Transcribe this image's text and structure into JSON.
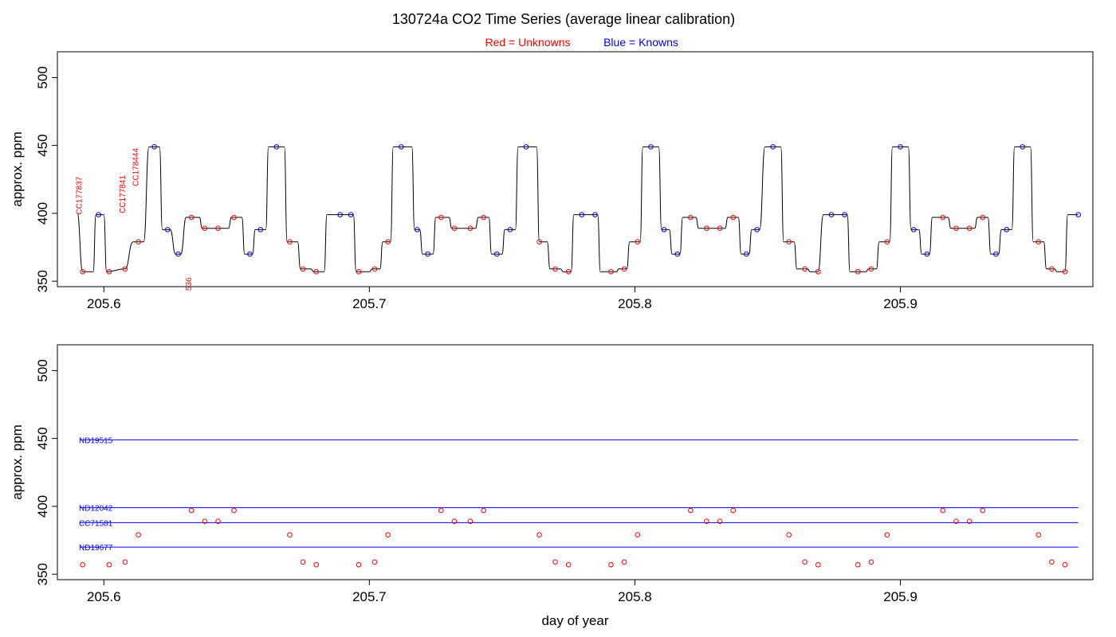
{
  "title": "130724a   CO2 Time Series (average linear calibration)",
  "legend": {
    "unknowns_word": "Red",
    "unknowns_rest": " = Unknowns",
    "knowns_word": "Blue",
    "knowns_rest": " = Knowns"
  },
  "colors": {
    "unknown": "#ff0000",
    "known": "#0000ff",
    "trace": "#000000"
  },
  "chart_data": [
    {
      "type": "line",
      "panel": "top",
      "xlabel": "",
      "ylabel": "approx. ppm",
      "xlim": [
        205.5825,
        205.9725
      ],
      "ylim": [
        346,
        519
      ],
      "xticks": [
        205.6,
        205.7,
        205.8,
        205.9
      ],
      "xtick_labels": [
        "205.6",
        "205.7",
        "205.8",
        "205.9"
      ],
      "yticks": [
        350,
        400,
        450,
        500
      ],
      "ytick_labels": [
        "350",
        "400",
        "450",
        "500"
      ],
      "trace_segments": [
        [
          205.59,
          400
        ],
        [
          205.592,
          357
        ],
        [
          205.596,
          357
        ],
        [
          205.597,
          399
        ],
        [
          205.6,
          399
        ],
        [
          205.601,
          357
        ],
        [
          205.608,
          359
        ],
        [
          205.611,
          379
        ],
        [
          205.615,
          379
        ],
        [
          205.617,
          449
        ],
        [
          205.621,
          449
        ],
        [
          205.622,
          388
        ],
        [
          205.625,
          388
        ],
        [
          205.627,
          370
        ],
        [
          205.629,
          370
        ],
        [
          205.631,
          397
        ],
        [
          205.636,
          397
        ],
        [
          205.637,
          389
        ],
        [
          205.647,
          389
        ],
        [
          205.648,
          397
        ],
        [
          205.652,
          397
        ],
        [
          205.653,
          370
        ],
        [
          205.656,
          370
        ],
        [
          205.657,
          388
        ],
        [
          205.661,
          388
        ],
        [
          205.662,
          449
        ],
        [
          205.668,
          449
        ],
        [
          205.669,
          379
        ],
        [
          205.673,
          379
        ],
        [
          205.674,
          359
        ],
        [
          205.678,
          359
        ],
        [
          205.679,
          357
        ],
        [
          205.683,
          357
        ],
        [
          205.684,
          399
        ],
        [
          205.694,
          399
        ],
        [
          205.695,
          357
        ],
        [
          205.7,
          357
        ],
        [
          205.701,
          359
        ],
        [
          205.704,
          359
        ],
        [
          205.705,
          379
        ],
        [
          205.708,
          379
        ],
        [
          205.709,
          449
        ],
        [
          205.716,
          449
        ],
        [
          205.717,
          388
        ],
        [
          205.719,
          388
        ],
        [
          205.72,
          370
        ],
        [
          205.724,
          370
        ],
        [
          205.725,
          397
        ],
        [
          205.73,
          397
        ],
        [
          205.731,
          389
        ],
        [
          205.74,
          389
        ],
        [
          205.741,
          397
        ],
        [
          205.745,
          397
        ],
        [
          205.746,
          370
        ],
        [
          205.75,
          370
        ],
        [
          205.751,
          388
        ],
        [
          205.755,
          388
        ],
        [
          205.756,
          449
        ],
        [
          205.763,
          449
        ],
        [
          205.764,
          379
        ],
        [
          205.767,
          379
        ],
        [
          205.768,
          359
        ],
        [
          205.772,
          359
        ],
        [
          205.773,
          357
        ],
        [
          205.776,
          357
        ],
        [
          205.777,
          399
        ],
        [
          205.786,
          399
        ],
        [
          205.787,
          357
        ],
        [
          205.793,
          357
        ],
        [
          205.794,
          359
        ],
        [
          205.797,
          359
        ],
        [
          205.798,
          379
        ],
        [
          205.802,
          379
        ],
        [
          205.803,
          449
        ],
        [
          205.809,
          449
        ],
        [
          205.81,
          388
        ],
        [
          205.813,
          388
        ],
        [
          205.814,
          370
        ],
        [
          205.817,
          370
        ],
        [
          205.818,
          397
        ],
        [
          205.823,
          397
        ],
        [
          205.824,
          389
        ],
        [
          205.834,
          389
        ],
        [
          205.835,
          397
        ],
        [
          205.839,
          397
        ],
        [
          205.84,
          370
        ],
        [
          205.843,
          370
        ],
        [
          205.844,
          388
        ],
        [
          205.847,
          388
        ],
        [
          205.849,
          449
        ],
        [
          205.855,
          449
        ],
        [
          205.856,
          379
        ],
        [
          205.86,
          379
        ],
        [
          205.861,
          359
        ],
        [
          205.865,
          359
        ],
        [
          205.866,
          357
        ],
        [
          205.869,
          357
        ],
        [
          205.871,
          399
        ],
        [
          205.88,
          399
        ],
        [
          205.881,
          357
        ],
        [
          205.887,
          357
        ],
        [
          205.888,
          359
        ],
        [
          205.891,
          359
        ],
        [
          205.892,
          379
        ],
        [
          205.896,
          379
        ],
        [
          205.897,
          449
        ],
        [
          205.903,
          449
        ],
        [
          205.904,
          388
        ],
        [
          205.907,
          388
        ],
        [
          205.908,
          370
        ],
        [
          205.911,
          370
        ],
        [
          205.912,
          397
        ],
        [
          205.918,
          397
        ],
        [
          205.919,
          389
        ],
        [
          205.928,
          389
        ],
        [
          205.929,
          397
        ],
        [
          205.933,
          397
        ],
        [
          205.934,
          370
        ],
        [
          205.937,
          370
        ],
        [
          205.938,
          388
        ],
        [
          205.942,
          388
        ],
        [
          205.943,
          449
        ],
        [
          205.949,
          449
        ],
        [
          205.95,
          379
        ],
        [
          205.954,
          379
        ],
        [
          205.955,
          359
        ],
        [
          205.958,
          359
        ],
        [
          205.959,
          357
        ],
        [
          205.962,
          357
        ],
        [
          205.963,
          399
        ],
        [
          205.967,
          399
        ]
      ],
      "known_points": [
        [
          205.598,
          399
        ],
        [
          205.619,
          449
        ],
        [
          205.624,
          388
        ],
        [
          205.628,
          370
        ],
        [
          205.655,
          370
        ],
        [
          205.659,
          388
        ],
        [
          205.665,
          449
        ],
        [
          205.689,
          399
        ],
        [
          205.693,
          399
        ],
        [
          205.712,
          449
        ],
        [
          205.718,
          388
        ],
        [
          205.722,
          370
        ],
        [
          205.748,
          370
        ],
        [
          205.753,
          388
        ],
        [
          205.759,
          449
        ],
        [
          205.78,
          399
        ],
        [
          205.785,
          399
        ],
        [
          205.806,
          449
        ],
        [
          205.811,
          388
        ],
        [
          205.816,
          370
        ],
        [
          205.842,
          370
        ],
        [
          205.846,
          388
        ],
        [
          205.852,
          449
        ],
        [
          205.874,
          399
        ],
        [
          205.879,
          399
        ],
        [
          205.9,
          449
        ],
        [
          205.905,
          388
        ],
        [
          205.91,
          370
        ],
        [
          205.936,
          370
        ],
        [
          205.94,
          388
        ],
        [
          205.946,
          449
        ],
        [
          205.967,
          399
        ]
      ],
      "unknown_points": [
        [
          205.592,
          357
        ],
        [
          205.602,
          357
        ],
        [
          205.608,
          359
        ],
        [
          205.613,
          379
        ],
        [
          205.633,
          397
        ],
        [
          205.638,
          389
        ],
        [
          205.643,
          389
        ],
        [
          205.649,
          397
        ],
        [
          205.67,
          379
        ],
        [
          205.675,
          359
        ],
        [
          205.68,
          357
        ],
        [
          205.696,
          357
        ],
        [
          205.702,
          359
        ],
        [
          205.707,
          379
        ],
        [
          205.727,
          397
        ],
        [
          205.732,
          389
        ],
        [
          205.738,
          389
        ],
        [
          205.743,
          397
        ],
        [
          205.764,
          379
        ],
        [
          205.77,
          359
        ],
        [
          205.775,
          357
        ],
        [
          205.791,
          357
        ],
        [
          205.796,
          359
        ],
        [
          205.801,
          379
        ],
        [
          205.821,
          397
        ],
        [
          205.827,
          389
        ],
        [
          205.832,
          389
        ],
        [
          205.837,
          397
        ],
        [
          205.858,
          379
        ],
        [
          205.864,
          359
        ],
        [
          205.869,
          357
        ],
        [
          205.884,
          357
        ],
        [
          205.889,
          359
        ],
        [
          205.895,
          379
        ],
        [
          205.916,
          397
        ],
        [
          205.921,
          389
        ],
        [
          205.926,
          389
        ],
        [
          205.931,
          397
        ],
        [
          205.952,
          379
        ],
        [
          205.957,
          359
        ],
        [
          205.962,
          357
        ]
      ],
      "annotations": [
        {
          "text": "CC177837",
          "x": 205.5917,
          "y": 399
        },
        {
          "text": "CC177841",
          "x": 205.608,
          "y": 400
        },
        {
          "text": "CC178444",
          "x": 205.613,
          "y": 420
        },
        {
          "text": "536",
          "x": 205.633,
          "y": 343
        }
      ]
    },
    {
      "type": "scatter",
      "panel": "bottom",
      "xlabel": "day of year",
      "ylabel": "approx. ppm",
      "xlim": [
        205.5825,
        205.9725
      ],
      "ylim": [
        346,
        519
      ],
      "xticks": [
        205.6,
        205.7,
        205.8,
        205.9
      ],
      "xtick_labels": [
        "205.6",
        "205.7",
        "205.8",
        "205.9"
      ],
      "yticks": [
        350,
        400,
        450,
        500
      ],
      "ytick_labels": [
        "350",
        "400",
        "450",
        "500"
      ],
      "reference_lines": [
        {
          "name": "ND19515",
          "y": 449,
          "x_start": 205.591,
          "x_end": 205.967
        },
        {
          "name": "ND12042",
          "y": 399,
          "x_start": 205.591,
          "x_end": 205.967
        },
        {
          "name": "CC71581",
          "y": 388,
          "x_start": 205.591,
          "x_end": 205.967
        },
        {
          "name": "ND19677",
          "y": 370,
          "x_start": 205.591,
          "x_end": 205.967
        }
      ],
      "unknown_points": [
        [
          205.592,
          357
        ],
        [
          205.602,
          357
        ],
        [
          205.608,
          359
        ],
        [
          205.613,
          379
        ],
        [
          205.633,
          397
        ],
        [
          205.638,
          389
        ],
        [
          205.643,
          389
        ],
        [
          205.649,
          397
        ],
        [
          205.67,
          379
        ],
        [
          205.675,
          359
        ],
        [
          205.68,
          357
        ],
        [
          205.696,
          357
        ],
        [
          205.702,
          359
        ],
        [
          205.707,
          379
        ],
        [
          205.727,
          397
        ],
        [
          205.732,
          389
        ],
        [
          205.738,
          389
        ],
        [
          205.743,
          397
        ],
        [
          205.764,
          379
        ],
        [
          205.77,
          359
        ],
        [
          205.775,
          357
        ],
        [
          205.791,
          357
        ],
        [
          205.796,
          359
        ],
        [
          205.801,
          379
        ],
        [
          205.821,
          397
        ],
        [
          205.827,
          389
        ],
        [
          205.832,
          389
        ],
        [
          205.837,
          397
        ],
        [
          205.858,
          379
        ],
        [
          205.864,
          359
        ],
        [
          205.869,
          357
        ],
        [
          205.884,
          357
        ],
        [
          205.889,
          359
        ],
        [
          205.895,
          379
        ],
        [
          205.916,
          397
        ],
        [
          205.921,
          389
        ],
        [
          205.926,
          389
        ],
        [
          205.931,
          397
        ],
        [
          205.952,
          379
        ],
        [
          205.957,
          359
        ],
        [
          205.962,
          357
        ]
      ]
    }
  ]
}
